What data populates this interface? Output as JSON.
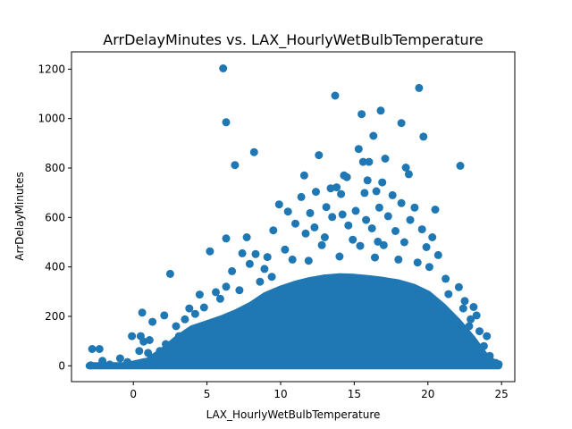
{
  "chart_data": {
    "type": "scatter",
    "title": "ArrDelayMinutes vs. LAX_HourlyWetBulbTemperature",
    "xlabel": "LAX_HourlyWetBulbTemperature",
    "ylabel": "ArrDelayMinutes",
    "xlim": [
      -4.2,
      25.9
    ],
    "ylim": [
      -64,
      1270
    ],
    "xticks": [
      0,
      5,
      10,
      15,
      20,
      25
    ],
    "yticks": [
      0,
      200,
      400,
      600,
      800,
      1000,
      1200
    ],
    "grid": false,
    "color": "#1f77b4",
    "points": [
      [
        6.1,
        1203
      ],
      [
        19.4,
        1124
      ],
      [
        13.7,
        1093
      ],
      [
        16.8,
        1032
      ],
      [
        15.5,
        1018
      ],
      [
        18.2,
        982
      ],
      [
        6.3,
        985
      ],
      [
        19.7,
        927
      ],
      [
        16.3,
        930
      ],
      [
        15.3,
        877
      ],
      [
        8.2,
        864
      ],
      [
        12.6,
        852
      ],
      [
        6.9,
        812
      ],
      [
        22.2,
        809
      ],
      [
        15.6,
        825
      ],
      [
        16.0,
        825
      ],
      [
        17.1,
        838
      ],
      [
        18.5,
        802
      ],
      [
        18.7,
        775
      ],
      [
        14.3,
        770
      ],
      [
        11.6,
        770
      ],
      [
        14.5,
        763
      ],
      [
        15.9,
        750
      ],
      [
        16.9,
        742
      ],
      [
        13.4,
        718
      ],
      [
        13.8,
        722
      ],
      [
        15.7,
        699
      ],
      [
        16.5,
        706
      ],
      [
        17.6,
        690
      ],
      [
        9.9,
        653
      ],
      [
        14.1,
        695
      ],
      [
        12.4,
        704
      ],
      [
        11.4,
        683
      ],
      [
        13.1,
        642
      ],
      [
        15.1,
        627
      ],
      [
        16.7,
        640
      ],
      [
        18.2,
        658
      ],
      [
        19.1,
        640
      ],
      [
        20.5,
        632
      ],
      [
        10.5,
        624
      ],
      [
        12.0,
        618
      ],
      [
        13.5,
        602
      ],
      [
        14.2,
        612
      ],
      [
        15.8,
        590
      ],
      [
        17.3,
        605
      ],
      [
        18.8,
        590
      ],
      [
        7.7,
        520
      ],
      [
        6.3,
        515
      ],
      [
        9.5,
        548
      ],
      [
        11.0,
        575
      ],
      [
        12.3,
        560
      ],
      [
        14.6,
        568
      ],
      [
        16.2,
        556
      ],
      [
        17.8,
        545
      ],
      [
        19.6,
        552
      ],
      [
        20.3,
        520
      ],
      [
        5.2,
        463
      ],
      [
        11.7,
        535
      ],
      [
        13.0,
        520
      ],
      [
        14.9,
        510
      ],
      [
        16.6,
        502
      ],
      [
        18.4,
        500
      ],
      [
        19.9,
        480
      ],
      [
        7.4,
        455
      ],
      [
        8.3,
        452
      ],
      [
        9.1,
        440
      ],
      [
        10.3,
        470
      ],
      [
        12.8,
        488
      ],
      [
        15.4,
        485
      ],
      [
        17.0,
        488
      ],
      [
        20.7,
        448
      ],
      [
        2.5,
        372
      ],
      [
        6.7,
        383
      ],
      [
        7.9,
        412
      ],
      [
        8.9,
        392
      ],
      [
        10.8,
        430
      ],
      [
        11.9,
        425
      ],
      [
        14.0,
        442
      ],
      [
        16.4,
        438
      ],
      [
        18.0,
        430
      ],
      [
        19.3,
        418
      ],
      [
        20.1,
        400
      ],
      [
        21.2,
        352
      ],
      [
        22.1,
        318
      ],
      [
        6.3,
        320
      ],
      [
        4.5,
        288
      ],
      [
        5.6,
        298
      ],
      [
        7.2,
        306
      ],
      [
        8.6,
        340
      ],
      [
        9.4,
        360
      ],
      [
        21.4,
        290
      ],
      [
        22.5,
        262
      ],
      [
        23.1,
        238
      ],
      [
        22.4,
        232
      ],
      [
        5.9,
        271
      ],
      [
        3.8,
        232
      ],
      [
        2.1,
        204
      ],
      [
        0.6,
        215
      ],
      [
        1.3,
        178
      ],
      [
        23.3,
        204
      ],
      [
        22.9,
        188
      ],
      [
        24.0,
        120
      ],
      [
        0.5,
        120
      ],
      [
        -0.1,
        120
      ],
      [
        0.7,
        98
      ],
      [
        1.1,
        104
      ],
      [
        -2.8,
        68
      ],
      [
        -2.3,
        68
      ],
      [
        0.4,
        60
      ],
      [
        1.0,
        52
      ],
      [
        23.8,
        80
      ],
      [
        24.2,
        40
      ],
      [
        24.6,
        12
      ],
      [
        -2.9,
        2
      ],
      [
        -1.6,
        5
      ],
      [
        -0.4,
        15
      ],
      [
        2.9,
        160
      ],
      [
        3.5,
        188
      ],
      [
        4.2,
        210
      ],
      [
        4.8,
        236
      ],
      [
        3.1,
        120
      ],
      [
        2.2,
        88
      ],
      [
        1.8,
        60
      ],
      [
        -0.9,
        30
      ],
      [
        -2.1,
        20
      ],
      [
        23.5,
        140
      ],
      [
        22.8,
        160
      ],
      [
        23.9,
        30
      ],
      [
        24.8,
        6
      ]
    ],
    "dense_region": [
      [
        -3.0,
        0
      ],
      [
        -0.5,
        0
      ],
      [
        1.0,
        20
      ],
      [
        2.0,
        60
      ],
      [
        3.0,
        110
      ],
      [
        4.0,
        150
      ],
      [
        5.0,
        170
      ],
      [
        6.0,
        190
      ],
      [
        7.0,
        215
      ],
      [
        8.0,
        245
      ],
      [
        9.0,
        285
      ],
      [
        10.0,
        310
      ],
      [
        11.0,
        330
      ],
      [
        12.0,
        345
      ],
      [
        13.0,
        355
      ],
      [
        14.0,
        360
      ],
      [
        15.0,
        358
      ],
      [
        16.0,
        352
      ],
      [
        17.0,
        345
      ],
      [
        18.0,
        335
      ],
      [
        19.0,
        318
      ],
      [
        20.0,
        290
      ],
      [
        21.0,
        240
      ],
      [
        22.0,
        180
      ],
      [
        23.0,
        110
      ],
      [
        23.8,
        45
      ],
      [
        24.5,
        10
      ],
      [
        24.8,
        0
      ],
      [
        -3.0,
        0
      ]
    ]
  }
}
